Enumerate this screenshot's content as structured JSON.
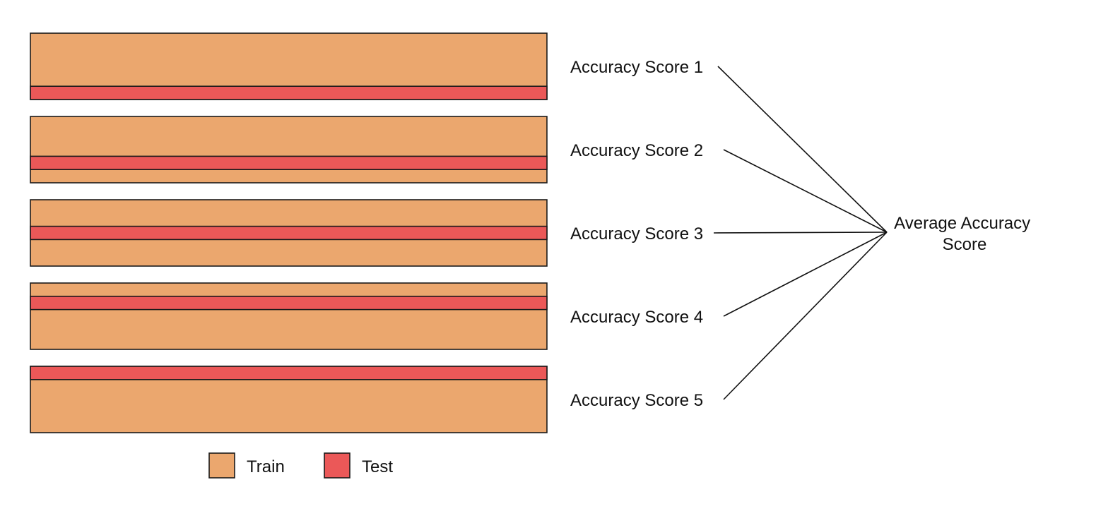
{
  "colors": {
    "train": "#EBA76E",
    "test": "#EB5858",
    "outline": "#1a1a1a"
  },
  "folds": [
    {
      "score_label": "Accuracy Score 1",
      "test_position": 4
    },
    {
      "score_label": "Accuracy Score 2",
      "test_position": 3
    },
    {
      "score_label": "Accuracy Score 3",
      "test_position": 2
    },
    {
      "score_label": "Accuracy Score 4",
      "test_position": 1
    },
    {
      "score_label": "Accuracy Score 5",
      "test_position": 0
    }
  ],
  "segments_per_fold": 5,
  "average": {
    "line1": "Average Accuracy",
    "line2": "Score"
  },
  "legend": {
    "train_label": "Train",
    "test_label": "Test"
  }
}
